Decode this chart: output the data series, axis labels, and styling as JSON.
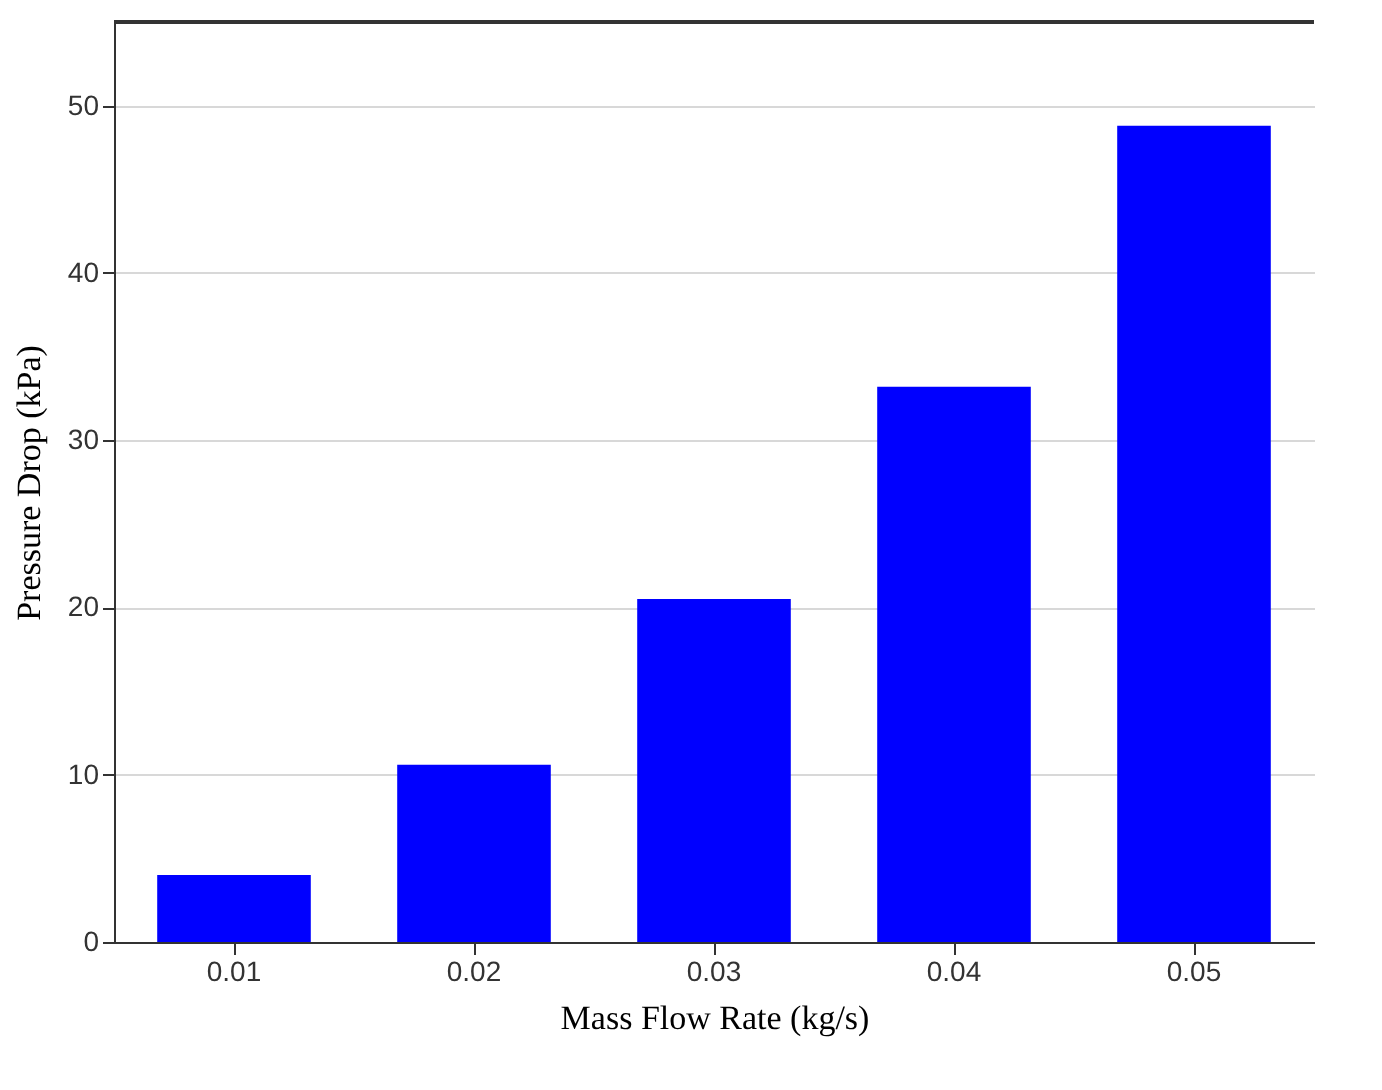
{
  "chart_data": {
    "type": "bar",
    "xlabel": "Mass Flow Rate (kg/s)",
    "ylabel": "Pressure Drop (kPa)",
    "categories": [
      "0.01",
      "0.02",
      "0.03",
      "0.04",
      "0.05"
    ],
    "values": [
      4.0,
      10.6,
      20.5,
      33.2,
      48.8
    ],
    "color": "#0000ff",
    "ylim": [
      0,
      55
    ],
    "yticks": [
      0,
      10,
      20,
      30,
      40,
      50
    ],
    "grid": "y"
  }
}
